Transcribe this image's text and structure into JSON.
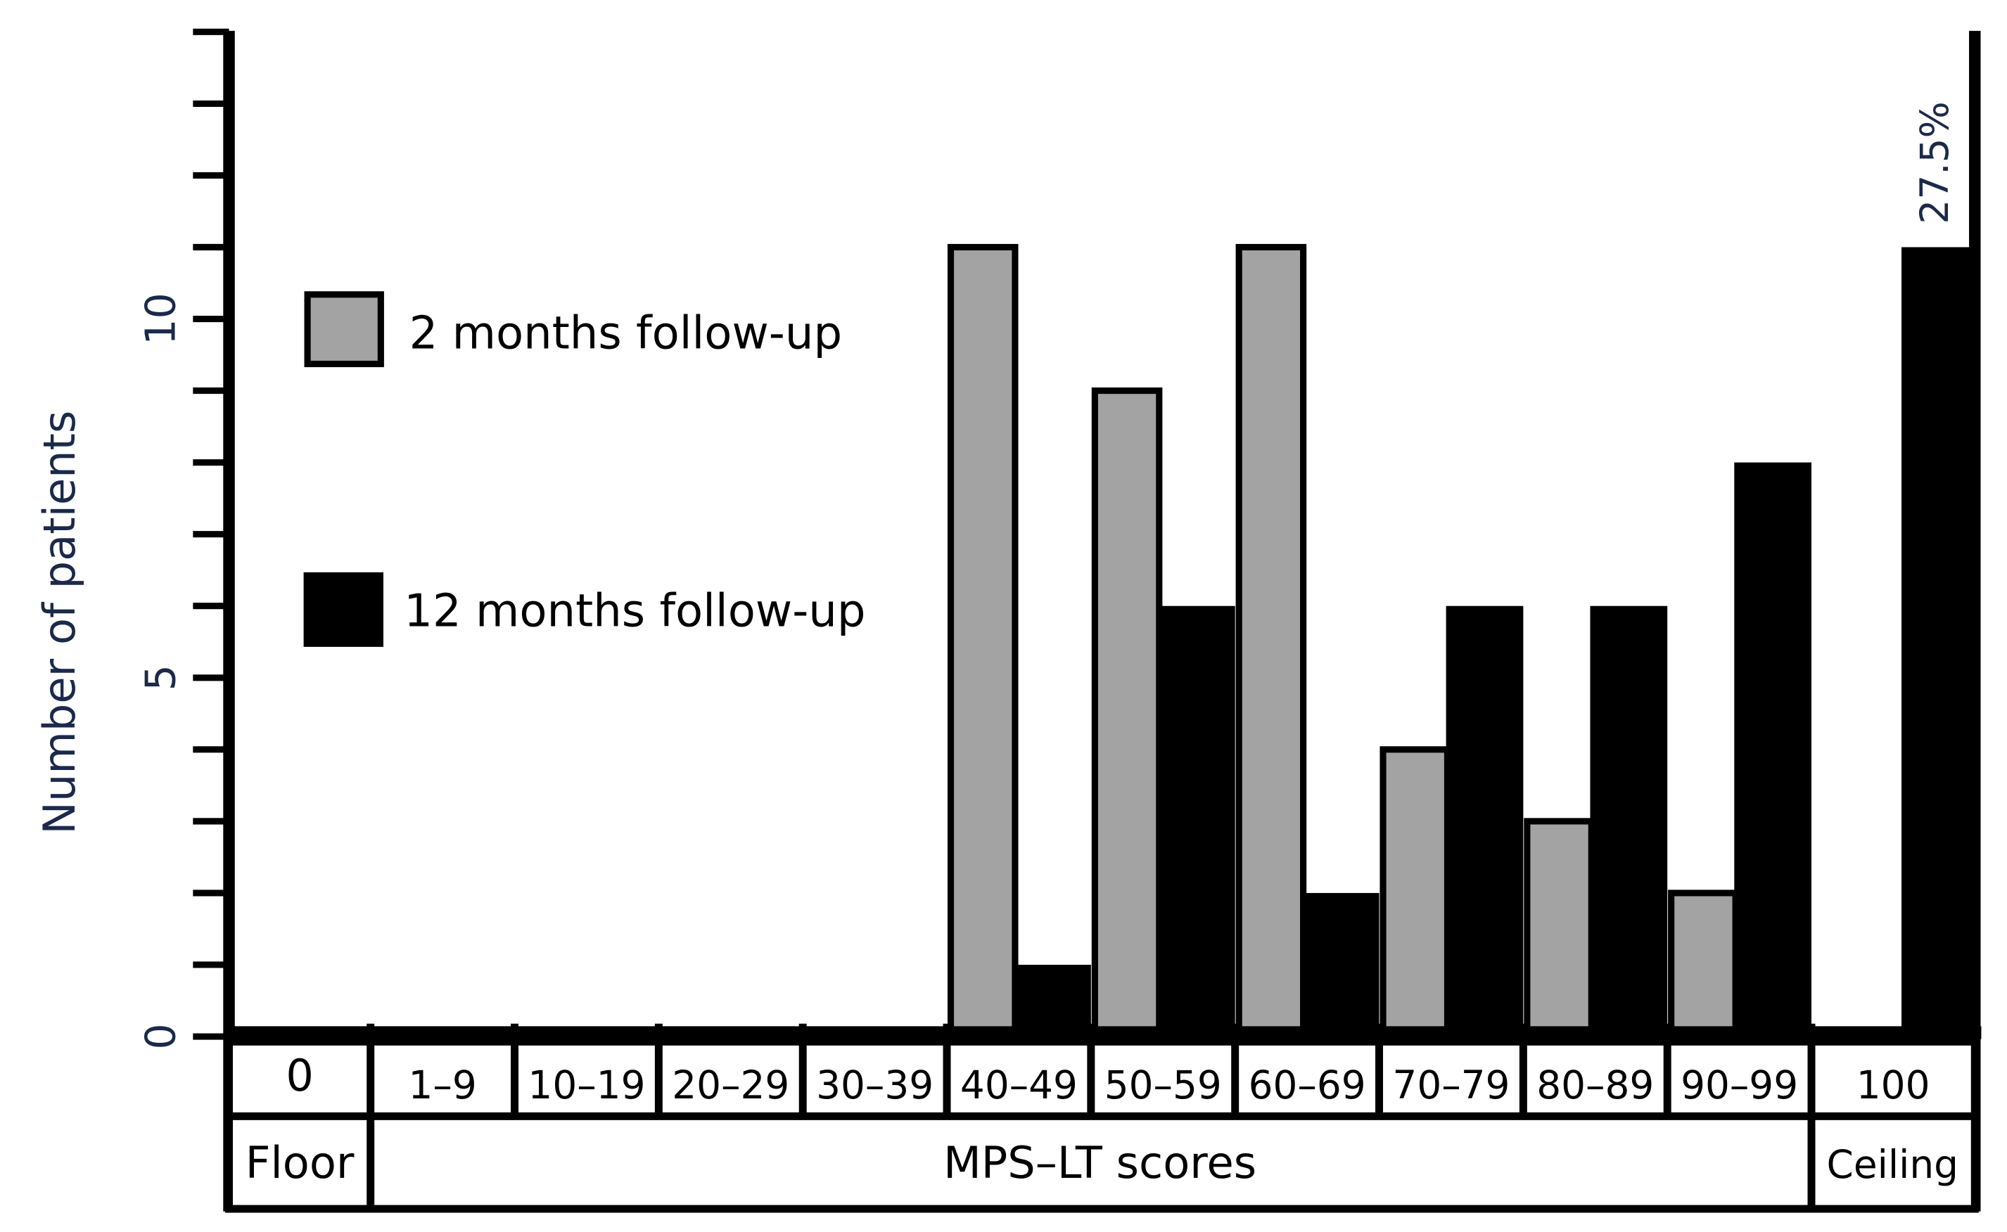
{
  "chart_data": {
    "type": "bar",
    "title": "",
    "xlabel": "MPS-LT scores",
    "ylabel": "Number of patients",
    "ylim": [
      0,
      14
    ],
    "yticks": [
      0,
      5,
      10
    ],
    "grid": false,
    "legend_placement": "top-left",
    "categories": [
      "0",
      "1–9",
      "10–19",
      "20–29",
      "30–39",
      "40–49",
      "50–59",
      "60–69",
      "70–79",
      "80–89",
      "90–99",
      "100"
    ],
    "group_labels": {
      "floor": "Floor",
      "middle": "MPS–LT scores",
      "ceiling": "Ceiling"
    },
    "series": [
      {
        "name": "2 months follow-up",
        "color": "#a3a3a3",
        "values": [
          0,
          0,
          0,
          0,
          0,
          11,
          9,
          11,
          4,
          3,
          2,
          0
        ]
      },
      {
        "name": "12 months follow-up",
        "color": "#000000",
        "values": [
          0,
          0,
          0,
          0,
          0,
          1,
          6,
          2,
          6,
          6,
          8,
          11
        ]
      }
    ],
    "annotations": [
      {
        "category": "100",
        "text": "27.5%"
      }
    ],
    "text_color": "#1b2a4a"
  }
}
